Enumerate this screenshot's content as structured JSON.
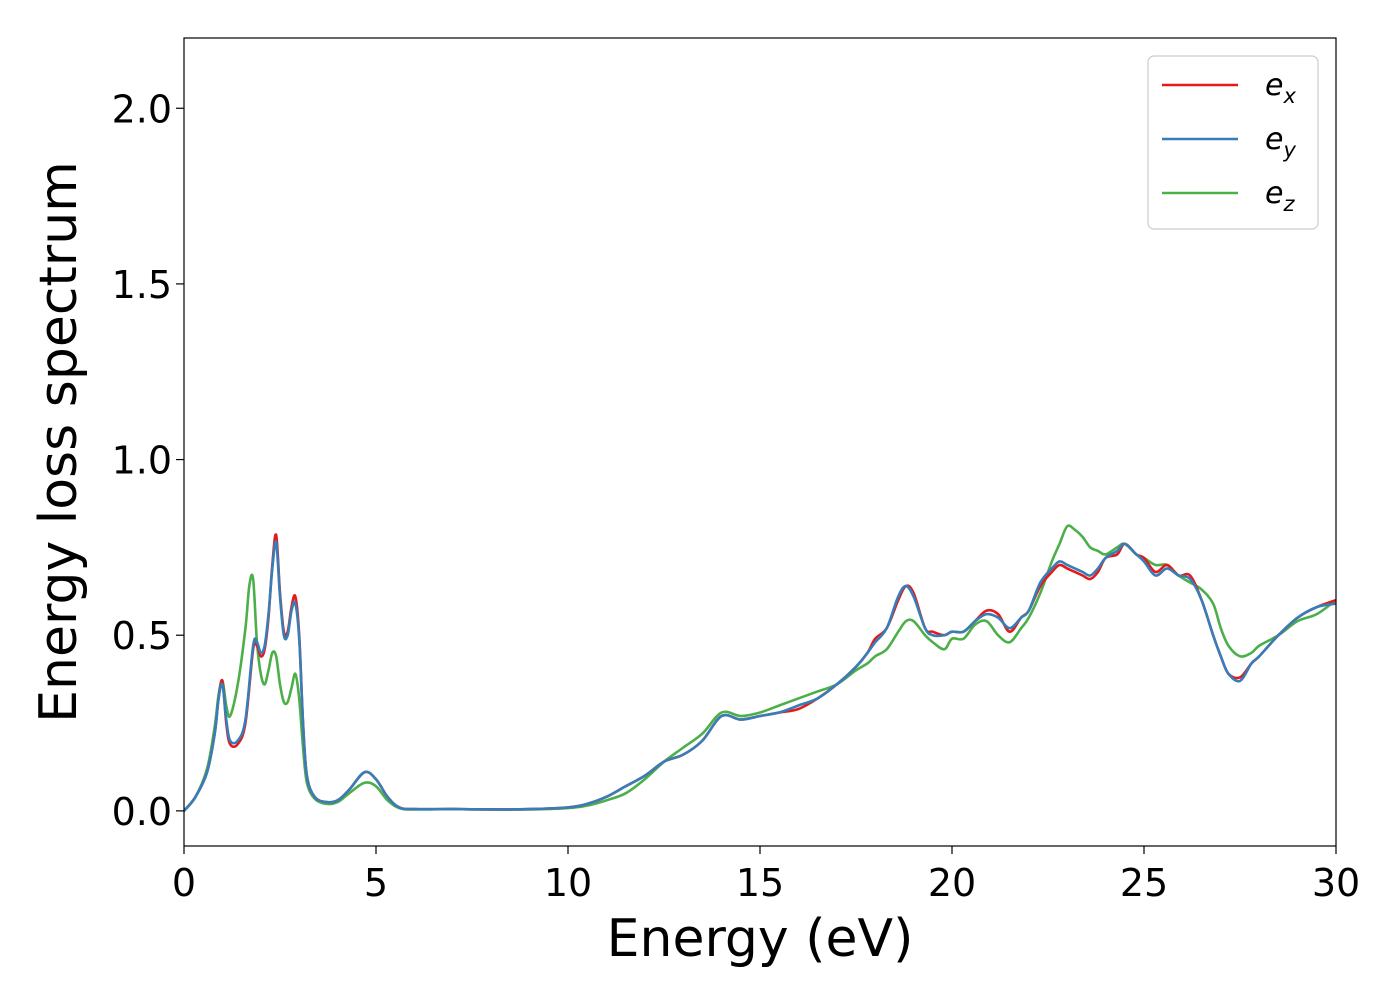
{
  "chart_data": {
    "type": "line",
    "xlabel": "Energy (eV)",
    "ylabel": "Energy loss spectrum",
    "xlim": [
      0,
      30
    ],
    "ylim": [
      -0.1,
      2.2
    ],
    "xticks": [
      0,
      5,
      10,
      15,
      20,
      25,
      30
    ],
    "xtick_labels": [
      "0",
      "5",
      "10",
      "15",
      "20",
      "25",
      "30"
    ],
    "yticks": [
      0.0,
      0.5,
      1.0,
      1.5,
      2.0
    ],
    "ytick_labels": [
      "0.0",
      "0.5",
      "1.0",
      "1.5",
      "2.0"
    ],
    "grid": false,
    "legend_position": "top-right",
    "series": [
      {
        "name_base": "e",
        "name_sub": "x",
        "color": "#e41a1c",
        "x": [
          0,
          0.3,
          0.6,
          0.8,
          0.9,
          1.0,
          1.1,
          1.2,
          1.4,
          1.6,
          1.8,
          1.9,
          2.0,
          2.1,
          2.2,
          2.3,
          2.4,
          2.5,
          2.6,
          2.7,
          2.8,
          2.9,
          3.0,
          3.1,
          3.2,
          3.4,
          3.7,
          4.0,
          4.3,
          4.7,
          5.0,
          5.3,
          5.6,
          6.0,
          7.0,
          8.0,
          9.0,
          10.0,
          10.5,
          11.0,
          11.5,
          12.0,
          12.5,
          13.0,
          13.5,
          14.0,
          14.5,
          15.0,
          15.5,
          16.0,
          16.5,
          17.0,
          17.5,
          17.8,
          18.0,
          18.3,
          18.6,
          18.8,
          19.0,
          19.3,
          19.5,
          19.8,
          20.0,
          20.3,
          20.6,
          20.9,
          21.2,
          21.5,
          21.8,
          22.0,
          22.3,
          22.6,
          22.8,
          23.0,
          23.2,
          23.4,
          23.6,
          23.8,
          24.0,
          24.3,
          24.5,
          24.8,
          25.0,
          25.3,
          25.6,
          25.9,
          26.2,
          26.5,
          26.8,
          27.0,
          27.2,
          27.5,
          27.8,
          28.0,
          28.5,
          29.0,
          29.5,
          30.0
        ],
        "y": [
          0,
          0.04,
          0.11,
          0.22,
          0.32,
          0.37,
          0.25,
          0.19,
          0.19,
          0.25,
          0.46,
          0.47,
          0.44,
          0.46,
          0.55,
          0.7,
          0.785,
          0.62,
          0.51,
          0.51,
          0.58,
          0.61,
          0.5,
          0.25,
          0.1,
          0.04,
          0.025,
          0.03,
          0.06,
          0.11,
          0.09,
          0.04,
          0.01,
          0.005,
          0.005,
          0.004,
          0.005,
          0.01,
          0.02,
          0.04,
          0.07,
          0.1,
          0.14,
          0.16,
          0.2,
          0.27,
          0.26,
          0.27,
          0.28,
          0.29,
          0.32,
          0.36,
          0.41,
          0.45,
          0.49,
          0.52,
          0.6,
          0.64,
          0.62,
          0.52,
          0.51,
          0.5,
          0.51,
          0.51,
          0.54,
          0.57,
          0.56,
          0.51,
          0.55,
          0.57,
          0.64,
          0.68,
          0.7,
          0.69,
          0.68,
          0.67,
          0.66,
          0.68,
          0.72,
          0.73,
          0.76,
          0.73,
          0.72,
          0.68,
          0.7,
          0.67,
          0.67,
          0.6,
          0.5,
          0.44,
          0.39,
          0.38,
          0.42,
          0.44,
          0.5,
          0.55,
          0.58,
          0.6
        ]
      },
      {
        "name_base": "e",
        "name_sub": "y",
        "color": "#377eb8",
        "x": [
          0,
          0.3,
          0.6,
          0.8,
          0.9,
          1.0,
          1.1,
          1.2,
          1.4,
          1.6,
          1.8,
          1.9,
          2.0,
          2.1,
          2.2,
          2.3,
          2.4,
          2.5,
          2.6,
          2.7,
          2.8,
          2.9,
          3.0,
          3.1,
          3.2,
          3.4,
          3.7,
          4.0,
          4.3,
          4.7,
          5.0,
          5.3,
          5.6,
          6.0,
          7.0,
          8.0,
          9.0,
          10.0,
          10.5,
          11.0,
          11.5,
          12.0,
          12.5,
          13.0,
          13.5,
          14.0,
          14.5,
          15.0,
          15.5,
          16.0,
          16.5,
          17.0,
          17.5,
          17.8,
          18.0,
          18.3,
          18.6,
          18.8,
          19.0,
          19.3,
          19.5,
          19.8,
          20.0,
          20.3,
          20.6,
          20.9,
          21.2,
          21.5,
          21.8,
          22.0,
          22.3,
          22.6,
          22.8,
          23.0,
          23.2,
          23.4,
          23.6,
          23.8,
          24.0,
          24.3,
          24.5,
          24.8,
          25.0,
          25.3,
          25.6,
          25.9,
          26.2,
          26.5,
          26.8,
          27.0,
          27.2,
          27.5,
          27.8,
          28.0,
          28.5,
          29.0,
          29.5,
          30.0
        ],
        "y": [
          0,
          0.04,
          0.11,
          0.22,
          0.32,
          0.36,
          0.26,
          0.2,
          0.2,
          0.26,
          0.47,
          0.48,
          0.45,
          0.47,
          0.56,
          0.69,
          0.765,
          0.61,
          0.5,
          0.5,
          0.57,
          0.59,
          0.49,
          0.25,
          0.1,
          0.04,
          0.025,
          0.03,
          0.06,
          0.11,
          0.09,
          0.04,
          0.01,
          0.005,
          0.005,
          0.004,
          0.005,
          0.01,
          0.02,
          0.04,
          0.07,
          0.1,
          0.14,
          0.16,
          0.2,
          0.27,
          0.26,
          0.27,
          0.28,
          0.3,
          0.32,
          0.36,
          0.41,
          0.45,
          0.48,
          0.52,
          0.61,
          0.64,
          0.61,
          0.52,
          0.5,
          0.5,
          0.51,
          0.51,
          0.54,
          0.56,
          0.55,
          0.52,
          0.55,
          0.57,
          0.65,
          0.69,
          0.71,
          0.7,
          0.69,
          0.68,
          0.67,
          0.69,
          0.72,
          0.74,
          0.76,
          0.73,
          0.71,
          0.67,
          0.69,
          0.67,
          0.66,
          0.6,
          0.5,
          0.44,
          0.39,
          0.37,
          0.42,
          0.44,
          0.5,
          0.55,
          0.58,
          0.59
        ]
      },
      {
        "name_base": "e",
        "name_sub": "z",
        "color": "#4daf4a",
        "x": [
          0,
          0.3,
          0.6,
          0.8,
          0.9,
          1.0,
          1.1,
          1.2,
          1.4,
          1.6,
          1.7,
          1.8,
          1.9,
          2.0,
          2.1,
          2.2,
          2.3,
          2.4,
          2.5,
          2.6,
          2.7,
          2.8,
          2.9,
          3.0,
          3.1,
          3.2,
          3.4,
          3.7,
          4.0,
          4.3,
          4.7,
          5.0,
          5.3,
          5.6,
          6.0,
          7.0,
          8.0,
          9.0,
          10.0,
          10.5,
          11.0,
          11.5,
          12.0,
          12.5,
          13.0,
          13.5,
          14.0,
          14.5,
          15.0,
          15.5,
          16.0,
          16.5,
          17.0,
          17.5,
          17.8,
          18.0,
          18.3,
          18.6,
          18.8,
          19.0,
          19.3,
          19.5,
          19.8,
          20.0,
          20.3,
          20.6,
          20.9,
          21.2,
          21.5,
          21.8,
          22.0,
          22.3,
          22.6,
          22.8,
          23.0,
          23.2,
          23.4,
          23.6,
          23.8,
          24.0,
          24.3,
          24.5,
          24.8,
          25.0,
          25.3,
          25.6,
          25.9,
          26.2,
          26.5,
          26.8,
          27.0,
          27.2,
          27.5,
          27.8,
          28.0,
          28.5,
          29.0,
          29.5,
          30.0
        ],
        "y": [
          0,
          0.04,
          0.12,
          0.24,
          0.33,
          0.37,
          0.3,
          0.27,
          0.36,
          0.52,
          0.64,
          0.66,
          0.48,
          0.39,
          0.36,
          0.4,
          0.45,
          0.44,
          0.36,
          0.31,
          0.31,
          0.35,
          0.39,
          0.32,
          0.18,
          0.08,
          0.035,
          0.02,
          0.025,
          0.05,
          0.08,
          0.07,
          0.03,
          0.008,
          0.004,
          0.005,
          0.004,
          0.004,
          0.008,
          0.015,
          0.03,
          0.05,
          0.09,
          0.14,
          0.18,
          0.22,
          0.28,
          0.27,
          0.28,
          0.3,
          0.32,
          0.34,
          0.36,
          0.4,
          0.42,
          0.44,
          0.46,
          0.51,
          0.54,
          0.54,
          0.5,
          0.48,
          0.46,
          0.49,
          0.49,
          0.53,
          0.54,
          0.5,
          0.48,
          0.52,
          0.55,
          0.62,
          0.71,
          0.76,
          0.81,
          0.8,
          0.78,
          0.75,
          0.74,
          0.73,
          0.75,
          0.76,
          0.73,
          0.72,
          0.7,
          0.7,
          0.67,
          0.65,
          0.63,
          0.59,
          0.52,
          0.47,
          0.44,
          0.45,
          0.47,
          0.5,
          0.54,
          0.56,
          0.6
        ]
      }
    ]
  }
}
